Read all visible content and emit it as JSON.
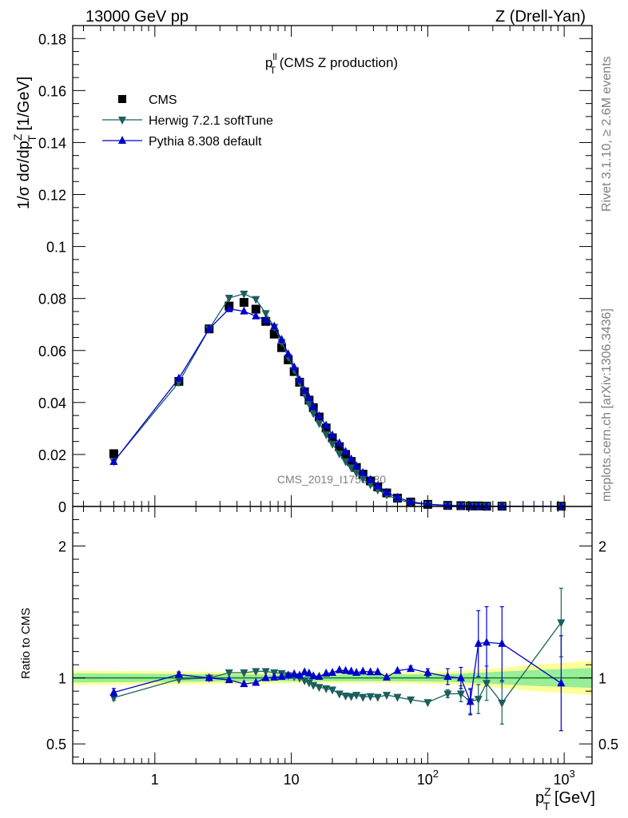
{
  "header": {
    "left": "13000 GeV pp",
    "right": "Z (Drell-Yan)"
  },
  "side": {
    "rivet": "Rivet 3.1.10, ≥ 2.6M events",
    "mcplots": "mcplots.cern.ch [arXiv:1306.3436]"
  },
  "watermark": "CMS_2019_I1753680",
  "main_title": {
    "text": "p",
    "sup": "ll",
    "sub": "T",
    "rest": " (CMS Z production)"
  },
  "ylabel": {
    "a": "1/σ dσ/dp",
    "sup": "Z",
    "sub": "T",
    "b": " [1/GeV]"
  },
  "ratio_ylabel": "Ratio to CMS",
  "xlabel": {
    "a": "p",
    "sup": "Z",
    "sub": "T",
    "b": " [GeV]"
  },
  "legend": [
    {
      "label": "CMS",
      "marker": "square",
      "color": "#000000"
    },
    {
      "label": "Herwig 7.2.1 softTune",
      "marker": "tri-down",
      "color": "#1b5e5e"
    },
    {
      "label": "Pythia 8.308 default",
      "marker": "tri-up",
      "color": "#0000cc"
    }
  ],
  "chart_data": {
    "type": "scatter",
    "x_scale": "log",
    "xlim": [
      0.25,
      1600
    ],
    "ylim": [
      0,
      0.185
    ],
    "ratio_ylim": [
      0.35,
      2.3
    ],
    "xticks": [
      {
        "v": 1,
        "label": "1"
      },
      {
        "v": 10,
        "label": "10"
      },
      {
        "v": 100,
        "label": "10",
        "sup": "2"
      },
      {
        "v": 1000,
        "label": "10",
        "sup": "3"
      }
    ],
    "yticks": [
      {
        "v": 0,
        "label": "0"
      },
      {
        "v": 0.02,
        "label": "0.02"
      },
      {
        "v": 0.04,
        "label": "0.04"
      },
      {
        "v": 0.06,
        "label": "0.06"
      },
      {
        "v": 0.08,
        "label": "0.08"
      },
      {
        "v": 0.1,
        "label": "0.1"
      },
      {
        "v": 0.12,
        "label": "0.12"
      },
      {
        "v": 0.14,
        "label": "0.14"
      },
      {
        "v": 0.16,
        "label": "0.16"
      },
      {
        "v": 0.18,
        "label": "0.18"
      }
    ],
    "ratio_yticks": [
      {
        "v": 0.5,
        "label": "0.5"
      },
      {
        "v": 1,
        "label": "1"
      },
      {
        "v": 2,
        "label": "2"
      }
    ],
    "x": [
      0.5,
      1.5,
      2.5,
      3.5,
      4.5,
      5.5,
      6.5,
      7.5,
      8.5,
      9.5,
      10.5,
      11.5,
      12.5,
      13.5,
      14.5,
      16,
      18,
      20,
      22.5,
      25,
      27.5,
      30,
      33.5,
      38,
      43,
      50,
      60,
      75,
      100,
      140,
      175,
      205,
      235,
      270,
      350,
      950
    ],
    "series": [
      {
        "name": "CMS",
        "values": [
          0.0203,
          0.0481,
          0.0683,
          0.0771,
          0.0785,
          0.0759,
          0.0712,
          0.0663,
          0.0611,
          0.0564,
          0.0519,
          0.0478,
          0.0441,
          0.0409,
          0.038,
          0.0344,
          0.0302,
          0.0264,
          0.023,
          0.02,
          0.0173,
          0.015,
          0.0124,
          0.0098,
          0.0075,
          0.0052,
          0.0032,
          0.0017,
          0.0008,
          0.0004,
          0.0003,
          0.0002,
          0.0002,
          0.0001,
          0.0001,
          0.0001
        ]
      },
      {
        "name": "Herwig 7.2.1 softTune",
        "values": [
          0.0173,
          0.0478,
          0.0683,
          0.0802,
          0.0818,
          0.0797,
          0.0743,
          0.069,
          0.0632,
          0.0574,
          0.0524,
          0.0478,
          0.0432,
          0.0394,
          0.0358,
          0.032,
          0.0277,
          0.024,
          0.0203,
          0.0173,
          0.0149,
          0.013,
          0.0106,
          0.0084,
          0.0064,
          0.0045,
          0.0027,
          0.0014,
          0.0007,
          0.0003,
          0.0002,
          0.0002,
          0.0001,
          0.0001,
          0.0001,
          0.0001
        ],
        "ratio": [
          0.85,
          0.99,
          1.0,
          1.04,
          1.04,
          1.05,
          1.05,
          1.04,
          1.035,
          1.02,
          1.01,
          1.0,
          0.98,
          0.965,
          0.945,
          0.93,
          0.92,
          0.91,
          0.88,
          0.865,
          0.86,
          0.87,
          0.855,
          0.86,
          0.855,
          0.87,
          0.855,
          0.835,
          0.815,
          0.88,
          0.88,
          0.82,
          0.84,
          0.96,
          0.81,
          1.42
        ],
        "err": [
          0.02,
          0.01,
          0.01,
          0.01,
          0.01,
          0.01,
          0.01,
          0.01,
          0.01,
          0.01,
          0.01,
          0.01,
          0.01,
          0.01,
          0.01,
          0.01,
          0.01,
          0.01,
          0.01,
          0.01,
          0.01,
          0.01,
          0.01,
          0.01,
          0.01,
          0.01,
          0.01,
          0.01,
          0.015,
          0.03,
          0.06,
          0.09,
          0.11,
          0.13,
          0.16,
          0.26
        ]
      },
      {
        "name": "Pythia 8.308 default",
        "values": [
          0.0172,
          0.0493,
          0.0683,
          0.076,
          0.0751,
          0.0732,
          0.0717,
          0.0693,
          0.0642,
          0.0586,
          0.0536,
          0.0487,
          0.0446,
          0.0418,
          0.0385,
          0.0348,
          0.0312,
          0.0274,
          0.0244,
          0.0211,
          0.0182,
          0.0156,
          0.013,
          0.0102,
          0.0079,
          0.0054,
          0.0034,
          0.0018,
          0.0009,
          0.0004,
          0.0003,
          0.0002,
          0.0002,
          0.0001,
          0.0001,
          0.0001
        ],
        "ratio": [
          0.89,
          1.025,
          1.0,
          0.985,
          0.955,
          0.965,
          1.0,
          1.005,
          1.01,
          1.02,
          1.03,
          1.02,
          1.045,
          1.035,
          1.015,
          1.01,
          1.035,
          1.04,
          1.06,
          1.055,
          1.05,
          1.04,
          1.05,
          1.045,
          1.045,
          1.005,
          1.055,
          1.07,
          1.04,
          1.01,
          1.0,
          0.82,
          1.26,
          1.27,
          1.26,
          0.96
        ],
        "err": [
          0.03,
          0.02,
          0.01,
          0.01,
          0.01,
          0.01,
          0.01,
          0.01,
          0.01,
          0.01,
          0.01,
          0.01,
          0.01,
          0.01,
          0.01,
          0.01,
          0.01,
          0.01,
          0.01,
          0.01,
          0.01,
          0.01,
          0.01,
          0.01,
          0.01,
          0.01,
          0.015,
          0.02,
          0.03,
          0.06,
          0.08,
          0.1,
          0.25,
          0.27,
          0.28,
          0.36
        ]
      }
    ],
    "uncertainty_band": {
      "x": [
        0.25,
        1.5,
        10,
        50,
        150,
        300,
        600,
        1600
      ],
      "inner": [
        0.035,
        0.03,
        0.025,
        0.025,
        0.03,
        0.045,
        0.06,
        0.075
      ],
      "outer": [
        0.055,
        0.05,
        0.04,
        0.04,
        0.05,
        0.07,
        0.1,
        0.13
      ]
    }
  }
}
